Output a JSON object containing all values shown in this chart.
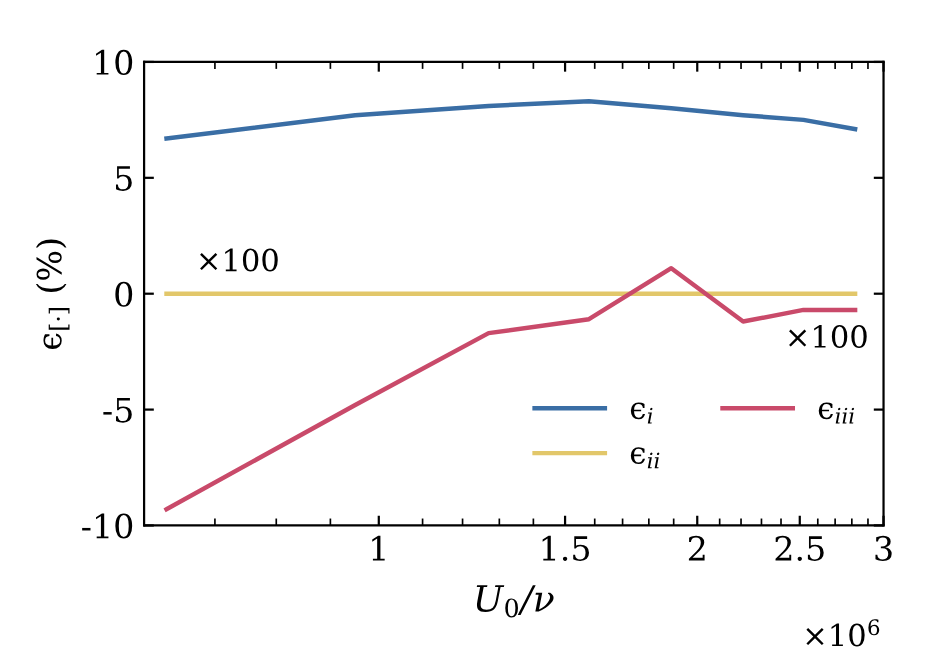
{
  "chart_data": {
    "type": "line",
    "xlabel": "U$_{0}$/ν",
    "ylabel": "ϵ$_{[·]}$ (%)",
    "log": "x",
    "xlim": [
      0.6,
      3
    ],
    "xticks": [
      1,
      1.5,
      2,
      2.5,
      3
    ],
    "ylim": [
      -10,
      10
    ],
    "yticks": [
      -10,
      -5,
      0,
      5,
      10
    ],
    "grid": false,
    "legend": "bottom right",
    "series": [
      {
        "name": "ϵ$_{i}$",
        "color": "#3a6ea5",
        "x": [
          0.63,
          0.95,
          1.27,
          1.58,
          1.89,
          2.21,
          2.52,
          2.82
        ],
        "values": [
          6.7,
          7.7,
          8.1,
          8.3,
          8.0,
          7.7,
          7.5,
          7.1
        ]
      },
      {
        "name": "ϵ$_{ii}$",
        "color": "#e2c76a",
        "x": [
          0.63,
          0.95,
          1.27,
          1.58,
          1.89,
          2.21,
          2.52,
          2.82
        ],
        "values": [
          0,
          0,
          0,
          0,
          0,
          0,
          0,
          0
        ]
      },
      {
        "name": "ϵ$_{iii}$",
        "color": "#c94a6a",
        "x": [
          0.63,
          0.95,
          1.27,
          1.58,
          1.89,
          2.21,
          2.52,
          2.82
        ],
        "values": [
          -9.3,
          -4.8,
          -1.7,
          -1.1,
          1.1,
          -1.2,
          -0.7,
          -0.7
        ]
      }
    ],
    "annotations": [
      "×100",
      "×100",
      "×10$^{6}$"
    ]
  }
}
